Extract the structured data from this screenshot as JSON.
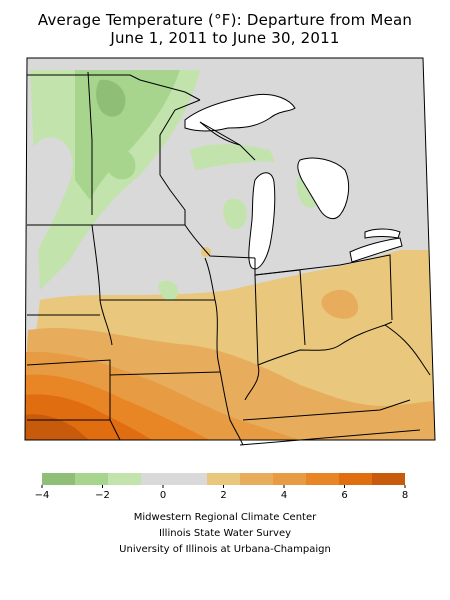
{
  "title": {
    "line1": "Average Temperature (°F): Departure from Mean",
    "line2": "June 1, 2011 to June 30, 2011"
  },
  "legend": {
    "colors": [
      "#8fbf77",
      "#a8d58e",
      "#c3e3ad",
      "#d9d9d9",
      "#d9d9d9",
      "#e9c77d",
      "#e8ad5c",
      "#e79b42",
      "#e88524",
      "#e06d10",
      "#c85a0c"
    ],
    "tick_values": [
      -4,
      -2,
      0,
      2,
      4,
      6,
      8
    ],
    "tick_labels": [
      "−4",
      "−2",
      "0",
      "2",
      "4",
      "6",
      "8"
    ]
  },
  "credits": [
    "Midwestern Regional Climate Center",
    "Illinois State Water Survey",
    "University of Illinois at Urbana-Champaign"
  ]
}
